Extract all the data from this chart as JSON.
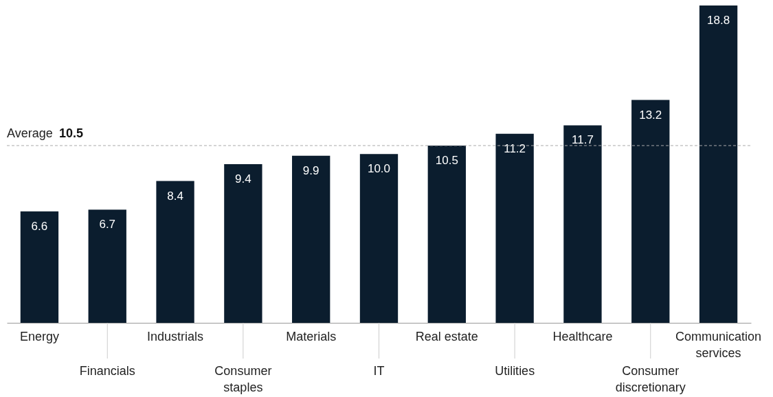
{
  "chart_data": {
    "type": "bar",
    "categories": [
      "Energy",
      "Financials",
      "Industrials",
      "Consumer staples",
      "Materials",
      "IT",
      "Real estate",
      "Utilities",
      "Healthcare",
      "Consumer discretionary",
      "Communication services"
    ],
    "values": [
      6.6,
      6.7,
      8.4,
      9.4,
      9.9,
      10.0,
      10.5,
      11.2,
      11.7,
      13.2,
      18.8
    ],
    "value_labels": [
      "6.6",
      "6.7",
      "8.4",
      "9.4",
      "9.9",
      "10.0",
      "10.5",
      "11.2",
      "11.7",
      "13.2",
      "18.8"
    ],
    "color": "#0b1d2e",
    "ylim": [
      0,
      18.8
    ],
    "ref_lines": [
      {
        "axis": "y",
        "value": 10.5,
        "label": "Average 10.5",
        "color": "#aaaaaa",
        "line_style": "dashed"
      }
    ]
  }
}
